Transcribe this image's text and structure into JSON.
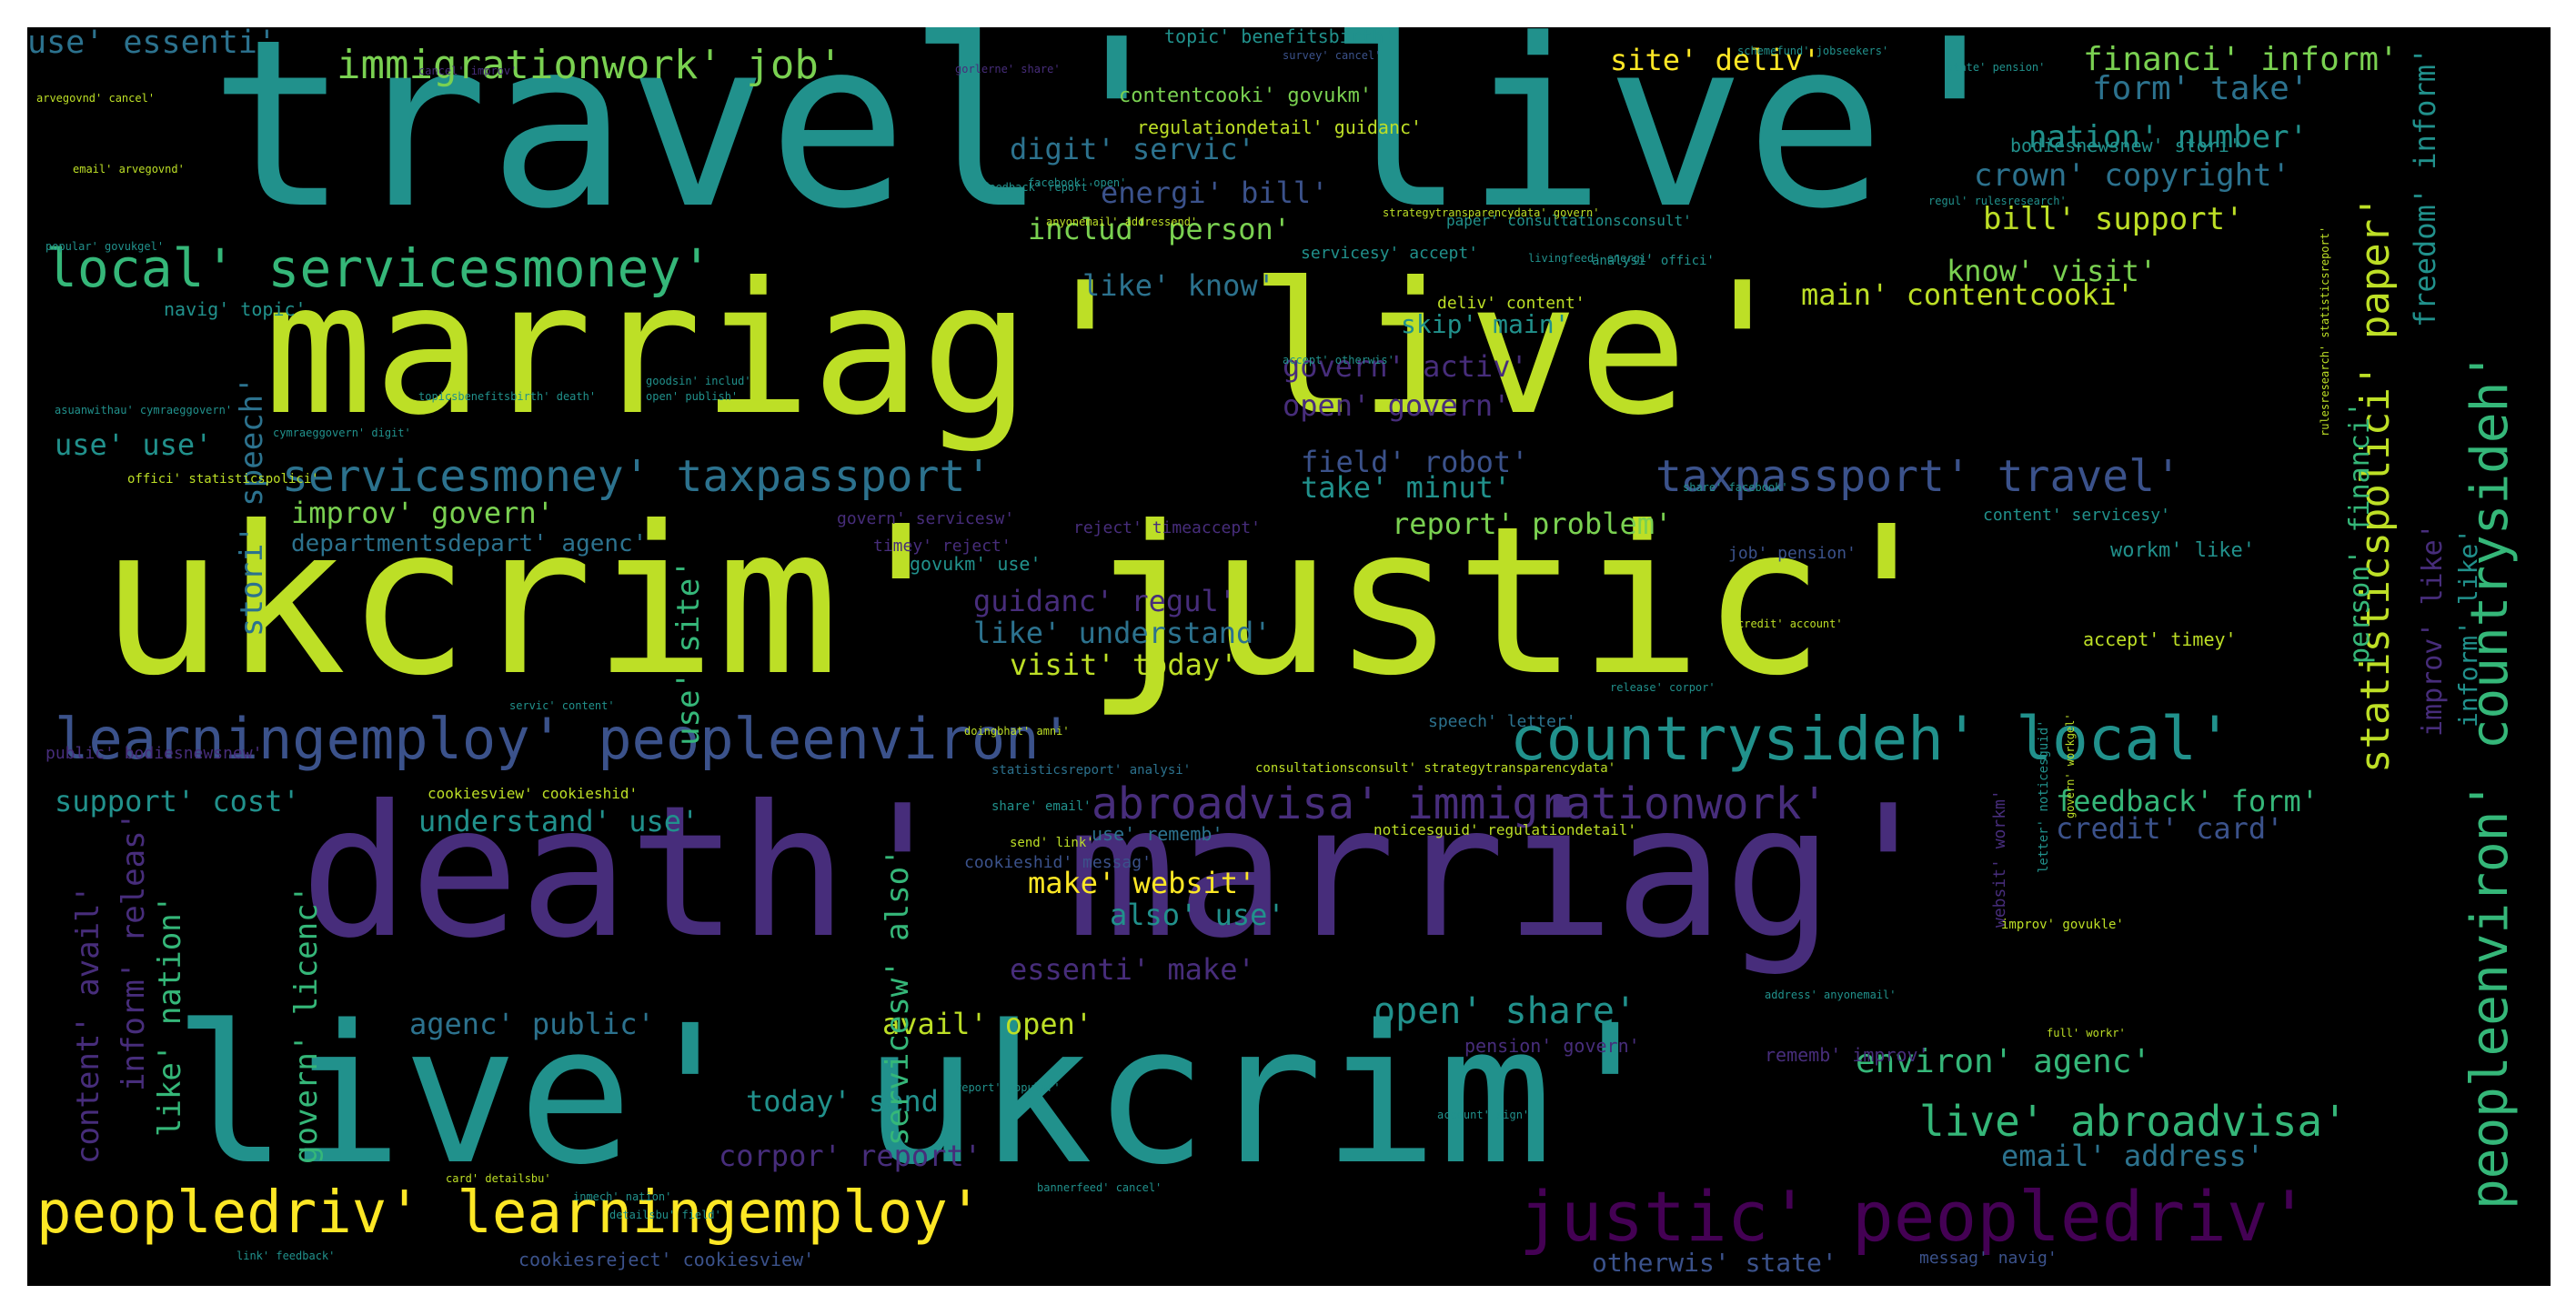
{
  "palette": {
    "yellow": "#bddf26",
    "lime": "#7ad151",
    "green": "#35b779",
    "teal": "#21918c",
    "blue": "#2c728e",
    "indigo": "#3b528b",
    "purple": "#472d7b",
    "dark": "#440154",
    "gold": "#fde725"
  },
  "words": [
    {
      "text": "travel' live'",
      "c": "teal"
    },
    {
      "text": "marriag' live'",
      "c": "yellow"
    },
    {
      "text": "ukcrim' justic'",
      "c": "yellow"
    },
    {
      "text": "death' marriag'",
      "c": "purple"
    },
    {
      "text": "live' ukcrim'",
      "c": "teal"
    },
    {
      "text": "peopledriv' learningemploy'",
      "c": "gold"
    },
    {
      "text": "justic' peopledriv'",
      "c": "dark"
    },
    {
      "text": "learningemploy' peopleenviron'",
      "c": "indigo"
    },
    {
      "text": "countrysideh' local'",
      "c": "teal"
    },
    {
      "text": "local' servicesmoney'",
      "c": "green"
    },
    {
      "text": "servicesmoney' taxpassport'",
      "c": "blue"
    },
    {
      "text": "taxpassport' travel'",
      "c": "indigo"
    },
    {
      "text": "abroadvisa' immigrationwork'",
      "c": "purple"
    },
    {
      "text": "immigrationwork' job'",
      "c": "lime"
    },
    {
      "text": "live' abroadvisa'",
      "c": "green"
    },
    {
      "text": "peopleenviron' countrysideh'",
      "c": "green"
    },
    {
      "text": "statisticspolici' paper'",
      "c": "yellow"
    },
    {
      "text": "use' essenti'",
      "c": "blue"
    },
    {
      "text": "site' deliv'",
      "c": "gold"
    },
    {
      "text": "financi' inform'",
      "c": "lime"
    },
    {
      "text": "form' take'",
      "c": "blue"
    },
    {
      "text": "nation' number'",
      "c": "teal"
    },
    {
      "text": "crown' copyright'",
      "c": "blue"
    },
    {
      "text": "bill' support'",
      "c": "yellow"
    },
    {
      "text": "know' visit'",
      "c": "lime"
    },
    {
      "text": "main' contentcooki'",
      "c": "yellow"
    },
    {
      "text": "digit' servic'",
      "c": "blue"
    },
    {
      "text": "energi' bill'",
      "c": "indigo"
    },
    {
      "text": "includ' person'",
      "c": "lime"
    },
    {
      "text": "like' know'",
      "c": "blue"
    },
    {
      "text": "skip' main'",
      "c": "teal"
    },
    {
      "text": "govern' activ'",
      "c": "purple"
    },
    {
      "text": "open' govern'",
      "c": "purple"
    },
    {
      "text": "field' robot'",
      "c": "indigo"
    },
    {
      "text": "take' minut'",
      "c": "teal"
    },
    {
      "text": "improv' govern'",
      "c": "lime"
    },
    {
      "text": "report' problem'",
      "c": "lime"
    },
    {
      "text": "guidanc' regul'",
      "c": "purple"
    },
    {
      "text": "like' understand'",
      "c": "blue"
    },
    {
      "text": "visit' today'",
      "c": "yellow"
    },
    {
      "text": "use' use'",
      "c": "teal"
    },
    {
      "text": "support' cost'",
      "c": "teal"
    },
    {
      "text": "understand' use'",
      "c": "teal"
    },
    {
      "text": "feedback' form'",
      "c": "green"
    },
    {
      "text": "credit' card'",
      "c": "indigo"
    },
    {
      "text": "make' websit'",
      "c": "gold"
    },
    {
      "text": "also' use'",
      "c": "teal"
    },
    {
      "text": "essenti' make'",
      "c": "purple"
    },
    {
      "text": "open' share'",
      "c": "teal"
    },
    {
      "text": "agenc' public'",
      "c": "blue"
    },
    {
      "text": "avail' open'",
      "c": "yellow"
    },
    {
      "text": "environ' agenc'",
      "c": "green"
    },
    {
      "text": "today' send'",
      "c": "teal"
    },
    {
      "text": "corpor' report'",
      "c": "purple"
    },
    {
      "text": "email' address'",
      "c": "blue"
    },
    {
      "text": "otherwis' state'",
      "c": "indigo"
    },
    {
      "text": "stori' speech'",
      "c": "blue"
    },
    {
      "text": "use' site'",
      "c": "green"
    },
    {
      "text": "servicesw' also'",
      "c": "green"
    },
    {
      "text": "govern' licenc'",
      "c": "green"
    },
    {
      "text": "like' nation'",
      "c": "green"
    },
    {
      "text": "inform' releas'",
      "c": "purple"
    },
    {
      "text": "content' avail'",
      "c": "purple"
    },
    {
      "text": "person' financi'",
      "c": "green"
    },
    {
      "text": "freedom' inform'",
      "c": "teal"
    },
    {
      "text": "improv' like'",
      "c": "purple"
    },
    {
      "text": "inform' like'",
      "c": "teal"
    },
    {
      "text": "topic' benefitsbirth'",
      "c": "teal"
    },
    {
      "text": "contentcooki' govukm'",
      "c": "lime"
    },
    {
      "text": "regulationdetail' guidanc'",
      "c": "yellow"
    },
    {
      "text": "navig' topic'",
      "c": "teal"
    },
    {
      "text": "deliv' content'",
      "c": "yellow"
    },
    {
      "text": "servicesy' accept'",
      "c": "teal"
    },
    {
      "text": "govern' servicesw'",
      "c": "purple"
    },
    {
      "text": "reject' timeaccept'",
      "c": "purple"
    },
    {
      "text": "timey' reject'",
      "c": "purple"
    },
    {
      "text": "govukm' use'",
      "c": "teal"
    },
    {
      "text": "content' servicesy'",
      "c": "teal"
    },
    {
      "text": "workm' like'",
      "c": "teal"
    },
    {
      "text": "job' pension'",
      "c": "indigo"
    },
    {
      "text": "accept' timey'",
      "c": "yellow"
    },
    {
      "text": "speech' letter'",
      "c": "blue"
    },
    {
      "text": "cookiesview' cookieshid'",
      "c": "yellow"
    },
    {
      "text": "cookieshid' messag'",
      "c": "indigo"
    },
    {
      "text": "use' rememb'",
      "c": "blue"
    },
    {
      "text": "rememb' improv'",
      "c": "purple"
    },
    {
      "text": "pension' govern'",
      "c": "purple"
    },
    {
      "text": "departmentsdepart' agenc'",
      "c": "blue"
    },
    {
      "text": "public' bodiesnewsnew'",
      "c": "purple"
    },
    {
      "text": "bodiesnewsnew' stori'",
      "c": "teal"
    },
    {
      "text": "cookiesreject' cookiesview'",
      "c": "indigo"
    },
    {
      "text": "messag' navig'",
      "c": "indigo"
    },
    {
      "text": "websit' workm'",
      "c": "purple"
    },
    {
      "text": "noticesguid' regulationdetail'",
      "c": "yellow"
    },
    {
      "text": "statisticsreport' analysi'",
      "c": "blue"
    },
    {
      "text": "consultationsconsult' strategytransparencydata'",
      "c": "yellow"
    },
    {
      "text": "paper' consultationsconsult'",
      "c": "teal"
    },
    {
      "text": "analysi' offici'",
      "c": "teal"
    },
    {
      "text": "offici' statisticspolici'",
      "c": "yellow"
    },
    {
      "text": "accept' otherwis'",
      "c": "teal"
    },
    {
      "text": "letter' noticesguid'",
      "c": "teal"
    },
    {
      "text": "share' email'",
      "c": "teal"
    },
    {
      "text": "send' link'",
      "c": "yellow"
    },
    {
      "text": "credit' account'",
      "c": "yellow"
    },
    {
      "text": "doingbhat' amni'",
      "c": "yellow"
    },
    {
      "text": "survey' cancel'",
      "c": "indigo"
    },
    {
      "text": "schemefund' jobseekers'",
      "c": "teal"
    },
    {
      "text": "state' pension'",
      "c": "teal"
    },
    {
      "text": "share' facebook'",
      "c": "teal"
    },
    {
      "text": "feedback' report'",
      "c": "teal"
    },
    {
      "text": "popular' govukgel'",
      "c": "teal"
    },
    {
      "text": "goodsin' includ'",
      "c": "teal"
    },
    {
      "text": "open' publish'",
      "c": "teal"
    },
    {
      "text": "cancel' improv'",
      "c": "purple"
    },
    {
      "text": "gorlerne' share'",
      "c": "purple"
    },
    {
      "text": "asuanwithau' cymraeggovern'",
      "c": "teal"
    },
    {
      "text": "report' popular'",
      "c": "teal"
    },
    {
      "text": "email' arvegovnd'",
      "c": "yellow"
    },
    {
      "text": "arvegovnd' cancel'",
      "c": "yellow"
    },
    {
      "text": "improv' govukle'",
      "c": "yellow"
    },
    {
      "text": "full' workr'",
      "c": "yellow"
    },
    {
      "text": "rulesresearch' statisticsreport'",
      "c": "yellow"
    },
    {
      "text": "regul' rulesresearch'",
      "c": "teal"
    },
    {
      "text": "facebook' open'",
      "c": "teal"
    },
    {
      "text": "anyonemail' addressend'",
      "c": "yellow"
    },
    {
      "text": "address' anyonemail'",
      "c": "teal"
    },
    {
      "text": "govern' workgel'",
      "c": "yellow"
    },
    {
      "text": "link' feedback'",
      "c": "teal"
    },
    {
      "text": "servic' content'",
      "c": "teal"
    },
    {
      "text": "strategytransparencydata' govern'",
      "c": "yellow"
    },
    {
      "text": "livingfeed' energi'",
      "c": "teal"
    },
    {
      "text": "topicsbenefitsbirth' death'",
      "c": "teal"
    },
    {
      "text": "cymraeggovern' digit'",
      "c": "teal"
    },
    {
      "text": "inmech' nation'",
      "c": "teal"
    },
    {
      "text": "bannerfeed' cancel'",
      "c": "teal"
    },
    {
      "text": "release' corpor'",
      "c": "teal"
    },
    {
      "text": "account' sign'",
      "c": "teal"
    },
    {
      "text": "card' detailsbu'",
      "c": "yellow"
    },
    {
      "text": "detailsbu' field'",
      "c": "teal"
    }
  ]
}
